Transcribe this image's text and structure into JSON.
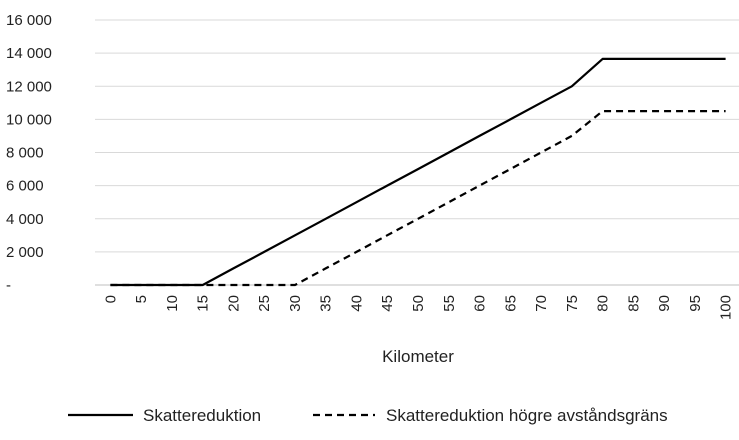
{
  "chart_data": {
    "type": "line",
    "xlabel": "Kilometer",
    "ylabel": "",
    "x": [
      0,
      5,
      10,
      15,
      20,
      25,
      30,
      35,
      40,
      45,
      50,
      55,
      60,
      65,
      70,
      75,
      80,
      85,
      90,
      95,
      100
    ],
    "x_tick_labels": [
      "0",
      "5",
      "10",
      "15",
      "20",
      "25",
      "30",
      "35",
      "40",
      "45",
      "50",
      "55",
      "60",
      "65",
      "70",
      "75",
      "80",
      "85",
      "90",
      "95",
      "100"
    ],
    "ylim": [
      0,
      16000
    ],
    "y_ticks": [
      0,
      2000,
      4000,
      6000,
      8000,
      10000,
      12000,
      14000,
      16000
    ],
    "y_tick_labels": [
      "-",
      "2 000",
      "4 000",
      "6 000",
      "8 000",
      "10 000",
      "12 000",
      "14 000",
      "16 000"
    ],
    "grid": true,
    "legend_position": "bottom",
    "series": [
      {
        "name": "Skattereduktion",
        "style": "solid",
        "color": "#000000",
        "values": [
          0,
          0,
          0,
          0,
          1000,
          2000,
          3000,
          4000,
          5000,
          6000,
          7000,
          8000,
          9000,
          10000,
          11000,
          12000,
          13650,
          13650,
          13650,
          13650,
          13650
        ]
      },
      {
        "name": "Skattereduktion högre avståndsgräns",
        "style": "dashed",
        "color": "#000000",
        "values": [
          0,
          0,
          0,
          0,
          0,
          0,
          0,
          1000,
          2000,
          3000,
          4000,
          5000,
          6000,
          7000,
          8000,
          9000,
          10500,
          10500,
          10500,
          10500,
          10500
        ]
      }
    ]
  }
}
